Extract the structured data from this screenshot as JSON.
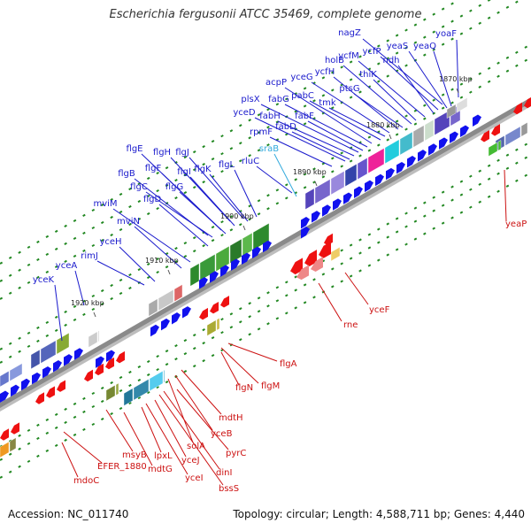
{
  "title": "Escherichia fergusonii ATCC 35469, complete genome",
  "footer": {
    "accession": "Accession: NC_011740",
    "topology": "Topology: circular; Length: 4,588,711 bp; Genes: 4,440"
  },
  "colors": {
    "forward_label": "#1a1acc",
    "reverse_label": "#cc1111",
    "rna_label": "#33aadd",
    "backbone": "#888888",
    "forward_gene": "#1111ee",
    "reverse_gene": "#ee1111",
    "tick": "#228822"
  },
  "scale_labels": [
    {
      "text": "1870 kbp"
    },
    {
      "text": "1880 kbp"
    },
    {
      "text": "1890 kbp"
    },
    {
      "text": "1900 kbp"
    },
    {
      "text": "1910 kbp"
    },
    {
      "text": "1920 kbp"
    }
  ],
  "forward_genes": [
    {
      "text": "yoaF"
    },
    {
      "text": "nagZ"
    },
    {
      "text": "yeaS"
    },
    {
      "text": "yeaQ"
    },
    {
      "text": "ycfP"
    },
    {
      "text": "ndh"
    },
    {
      "text": "ycfM"
    },
    {
      "text": "holB"
    },
    {
      "text": "thiK"
    },
    {
      "text": "yceG"
    },
    {
      "text": "ycfH"
    },
    {
      "text": "ptsG"
    },
    {
      "text": "acpP"
    },
    {
      "text": "pabC"
    },
    {
      "text": "tmk"
    },
    {
      "text": "plsX"
    },
    {
      "text": "fabG"
    },
    {
      "text": "yceD"
    },
    {
      "text": "fabH"
    },
    {
      "text": "fabF"
    },
    {
      "text": "rpmF"
    },
    {
      "text": "fabD"
    },
    {
      "text": "flgE"
    },
    {
      "text": "flgH"
    },
    {
      "text": "flgJ"
    },
    {
      "text": "flgF"
    },
    {
      "text": "flgI"
    },
    {
      "text": "flgK"
    },
    {
      "text": "flgL"
    },
    {
      "text": "rluC"
    },
    {
      "text": "flgB"
    },
    {
      "text": "flgC"
    },
    {
      "text": "flgG"
    },
    {
      "text": "flgD"
    },
    {
      "text": "mviM"
    },
    {
      "text": "mviN"
    },
    {
      "text": "yceH"
    },
    {
      "text": "rimJ"
    },
    {
      "text": "yceA"
    },
    {
      "text": "yceK"
    }
  ],
  "rna_genes": [
    {
      "text": "sraB"
    }
  ],
  "reverse_genes": [
    {
      "text": "yeaP"
    },
    {
      "text": "yceF"
    },
    {
      "text": "rne"
    },
    {
      "text": "flgA"
    },
    {
      "text": "flgM"
    },
    {
      "text": "flgN"
    },
    {
      "text": "mdtH"
    },
    {
      "text": "yceB"
    },
    {
      "text": "solA"
    },
    {
      "text": "pyrC"
    },
    {
      "text": "dinI"
    },
    {
      "text": "bssS"
    },
    {
      "text": "yceJ"
    },
    {
      "text": "yceI"
    },
    {
      "text": "lpxL"
    },
    {
      "text": "msyB"
    },
    {
      "text": "mdtG"
    },
    {
      "text": "EFER_1880"
    },
    {
      "text": "mdoC"
    }
  ]
}
